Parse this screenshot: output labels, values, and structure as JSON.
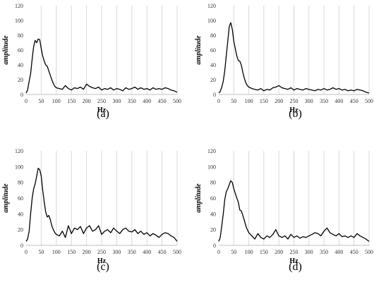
{
  "figure": {
    "panels": [
      {
        "caption": "(a)"
      },
      {
        "caption": "(b)"
      },
      {
        "caption": "(c)"
      },
      {
        "caption": "(d)"
      }
    ]
  },
  "chart_data": [
    {
      "type": "line",
      "caption": "(a)",
      "xlabel": "Hz",
      "ylabel": "amplitude",
      "xlim": [
        0,
        500
      ],
      "ylim": [
        0,
        120
      ],
      "x_ticks": [
        0,
        50,
        100,
        150,
        200,
        250,
        300,
        350,
        400,
        450,
        500
      ],
      "y_ticks": [
        0,
        20,
        40,
        60,
        80,
        100,
        120
      ],
      "grid": "vertical",
      "series": [
        {
          "color": "#000000",
          "x": [
            0,
            5,
            10,
            15,
            20,
            25,
            30,
            35,
            40,
            45,
            50,
            55,
            60,
            65,
            70,
            75,
            80,
            85,
            90,
            95,
            100,
            110,
            120,
            130,
            140,
            150,
            160,
            170,
            180,
            190,
            200,
            210,
            220,
            230,
            240,
            250,
            260,
            270,
            280,
            290,
            300,
            310,
            320,
            330,
            340,
            350,
            360,
            370,
            380,
            390,
            400,
            410,
            420,
            430,
            440,
            450,
            460,
            470,
            480,
            490,
            500
          ],
          "y": [
            2,
            6,
            18,
            28,
            48,
            65,
            73,
            70,
            75,
            74,
            62,
            52,
            45,
            40,
            38,
            32,
            26,
            20,
            15,
            11,
            9,
            8,
            7,
            12,
            8,
            6,
            9,
            8,
            10,
            7,
            14,
            11,
            9,
            8,
            10,
            6,
            8,
            7,
            9,
            6,
            8,
            7,
            5,
            9,
            7,
            8,
            10,
            7,
            9,
            7,
            8,
            6,
            9,
            7,
            8,
            7,
            9,
            8,
            6,
            5,
            3
          ]
        }
      ]
    },
    {
      "type": "line",
      "caption": "(b)",
      "xlabel": "Hz",
      "ylabel": "amplitude",
      "xlim": [
        0,
        500
      ],
      "ylim": [
        0,
        120
      ],
      "x_ticks": [
        0,
        50,
        100,
        150,
        200,
        250,
        300,
        350,
        400,
        450,
        500
      ],
      "y_ticks": [
        0,
        20,
        40,
        60,
        80,
        100,
        120
      ],
      "grid": "vertical",
      "series": [
        {
          "color": "#000000",
          "x": [
            0,
            5,
            10,
            15,
            20,
            25,
            30,
            35,
            40,
            45,
            50,
            55,
            60,
            65,
            70,
            75,
            80,
            85,
            90,
            95,
            100,
            110,
            120,
            130,
            140,
            150,
            160,
            170,
            180,
            190,
            200,
            210,
            220,
            230,
            240,
            250,
            260,
            270,
            280,
            290,
            300,
            310,
            320,
            330,
            340,
            350,
            360,
            370,
            380,
            390,
            400,
            410,
            420,
            430,
            440,
            450,
            460,
            470,
            480,
            490,
            500
          ],
          "y": [
            2,
            4,
            10,
            18,
            32,
            52,
            72,
            92,
            97,
            88,
            72,
            62,
            52,
            46,
            45,
            40,
            30,
            22,
            16,
            12,
            10,
            8,
            7,
            6,
            8,
            5,
            7,
            6,
            9,
            10,
            12,
            9,
            8,
            7,
            9,
            6,
            8,
            7,
            6,
            8,
            7,
            6,
            5,
            7,
            6,
            8,
            6,
            7,
            9,
            7,
            8,
            6,
            7,
            5,
            6,
            5,
            7,
            6,
            5,
            3,
            2
          ]
        }
      ]
    },
    {
      "type": "line",
      "caption": "(c)",
      "xlabel": "Hz",
      "ylabel": "amplitude",
      "xlim": [
        0,
        500
      ],
      "ylim": [
        0,
        120
      ],
      "x_ticks": [
        0,
        50,
        100,
        150,
        200,
        250,
        300,
        350,
        400,
        450,
        500
      ],
      "y_ticks": [
        0,
        20,
        40,
        60,
        80,
        100,
        120
      ],
      "grid": "vertical",
      "series": [
        {
          "color": "#000000",
          "x": [
            0,
            5,
            10,
            15,
            20,
            25,
            30,
            35,
            40,
            45,
            50,
            55,
            60,
            65,
            70,
            75,
            80,
            85,
            90,
            95,
            100,
            110,
            120,
            130,
            140,
            150,
            160,
            170,
            180,
            190,
            200,
            210,
            220,
            230,
            240,
            250,
            260,
            270,
            280,
            290,
            300,
            310,
            320,
            330,
            340,
            350,
            360,
            370,
            380,
            390,
            400,
            410,
            420,
            430,
            440,
            450,
            460,
            470,
            480,
            490,
            500
          ],
          "y": [
            5,
            8,
            18,
            40,
            60,
            72,
            78,
            88,
            98,
            96,
            88,
            70,
            55,
            42,
            36,
            38,
            33,
            25,
            20,
            16,
            14,
            12,
            18,
            10,
            25,
            15,
            22,
            20,
            24,
            15,
            22,
            25,
            18,
            20,
            25,
            14,
            18,
            20,
            16,
            22,
            18,
            15,
            20,
            22,
            18,
            17,
            20,
            15,
            18,
            14,
            16,
            12,
            15,
            13,
            10,
            14,
            16,
            15,
            12,
            10,
            5
          ]
        }
      ]
    },
    {
      "type": "line",
      "caption": "(d)",
      "xlabel": "Hz",
      "ylabel": "amplitude",
      "xlim": [
        0,
        500
      ],
      "ylim": [
        0,
        120
      ],
      "x_ticks": [
        0,
        50,
        100,
        150,
        200,
        250,
        300,
        350,
        400,
        450,
        500
      ],
      "y_ticks": [
        0,
        20,
        40,
        60,
        80,
        100,
        120
      ],
      "grid": "vertical",
      "series": [
        {
          "color": "#000000",
          "x": [
            0,
            5,
            10,
            15,
            20,
            25,
            30,
            35,
            40,
            45,
            50,
            55,
            60,
            65,
            70,
            75,
            80,
            85,
            90,
            95,
            100,
            110,
            120,
            130,
            140,
            150,
            160,
            170,
            180,
            190,
            200,
            210,
            220,
            230,
            240,
            250,
            260,
            270,
            280,
            290,
            300,
            310,
            320,
            330,
            340,
            350,
            360,
            370,
            380,
            390,
            400,
            410,
            420,
            430,
            440,
            450,
            460,
            470,
            480,
            490,
            500
          ],
          "y": [
            5,
            10,
            25,
            40,
            58,
            68,
            72,
            77,
            82,
            80,
            72,
            66,
            60,
            55,
            45,
            44,
            38,
            32,
            25,
            20,
            16,
            12,
            8,
            15,
            10,
            8,
            12,
            10,
            14,
            20,
            12,
            10,
            12,
            8,
            14,
            10,
            12,
            9,
            11,
            10,
            12,
            14,
            16,
            15,
            12,
            18,
            22,
            16,
            14,
            12,
            15,
            11,
            12,
            10,
            12,
            10,
            15,
            12,
            10,
            8,
            5
          ]
        }
      ]
    }
  ]
}
